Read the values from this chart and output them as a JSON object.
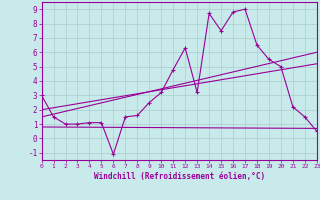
{
  "xlabel": "Windchill (Refroidissement éolien,°C)",
  "xlim": [
    0,
    23
  ],
  "ylim": [
    -1.5,
    9.5
  ],
  "yticks": [
    -1,
    0,
    1,
    2,
    3,
    4,
    5,
    6,
    7,
    8,
    9
  ],
  "xticks": [
    0,
    1,
    2,
    3,
    4,
    5,
    6,
    7,
    8,
    9,
    10,
    11,
    12,
    13,
    14,
    15,
    16,
    17,
    18,
    19,
    20,
    21,
    22,
    23
  ],
  "bg_color": "#c8eaea",
  "line_color": "#990099",
  "grid_color": "#aacccc",
  "jagged_x": [
    0,
    1,
    2,
    3,
    4,
    5,
    6,
    7,
    8,
    9,
    10,
    11,
    12,
    13,
    14,
    15,
    16,
    17,
    18,
    19,
    20,
    21,
    22,
    23
  ],
  "jagged_y": [
    3.0,
    1.5,
    1.0,
    1.0,
    1.1,
    1.1,
    -1.1,
    1.5,
    1.6,
    2.5,
    3.2,
    4.8,
    6.3,
    3.2,
    8.7,
    7.5,
    8.8,
    9.0,
    6.5,
    5.5,
    5.0,
    2.2,
    1.5,
    0.5
  ],
  "line1_x": [
    0,
    23
  ],
  "line1_y": [
    0.8,
    0.7
  ],
  "line2_x": [
    0,
    23
  ],
  "line2_y": [
    1.5,
    6.0
  ],
  "line3_x": [
    0,
    23
  ],
  "line3_y": [
    2.0,
    5.2
  ]
}
